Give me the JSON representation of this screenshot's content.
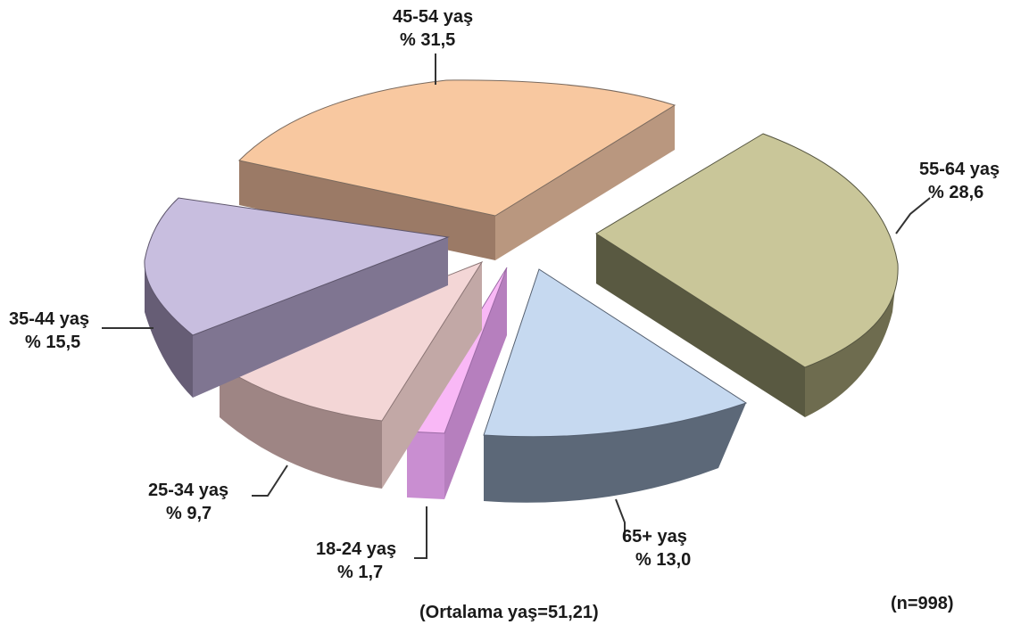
{
  "chart_data": {
    "type": "pie",
    "style": "3d-exploded",
    "slices": [
      {
        "label": "45-54 yaş",
        "value_label": "% 31,5",
        "value": 31.5,
        "top_color": "#f8c8a0",
        "side_color": "#9b7a66",
        "face_color": "#b9977f"
      },
      {
        "label": "55-64 yaş",
        "value_label": "% 28,6",
        "value": 28.6,
        "top_color": "#c9c699",
        "side_color": "#595941",
        "face_color": "#6e6c4f"
      },
      {
        "label": "65+ yaş",
        "value_label": "% 13,0",
        "value": 13.0,
        "top_color": "#c6d9f0",
        "side_color": "#5c6878",
        "face_color": "#7d8a9b"
      },
      {
        "label": "18-24 yaş",
        "value_label": "% 1,7",
        "value": 1.7,
        "top_color": "#f9b8f6",
        "side_color": "#b67fbe",
        "face_color": "#c98ed1"
      },
      {
        "label": "25-34 yaş",
        "value_label": "% 9,7",
        "value": 9.7,
        "top_color": "#f3d6d6",
        "side_color": "#9e8584",
        "face_color": "#c2a8a6"
      },
      {
        "label": "35-44 yaş",
        "value_label": "% 15,5",
        "value": 15.5,
        "top_color": "#c8bedf",
        "side_color": "#665d75",
        "face_color": "#7f7591"
      }
    ]
  },
  "notes": {
    "average": "(Ortalama yaş=51,21)",
    "n": "(n=998)"
  }
}
